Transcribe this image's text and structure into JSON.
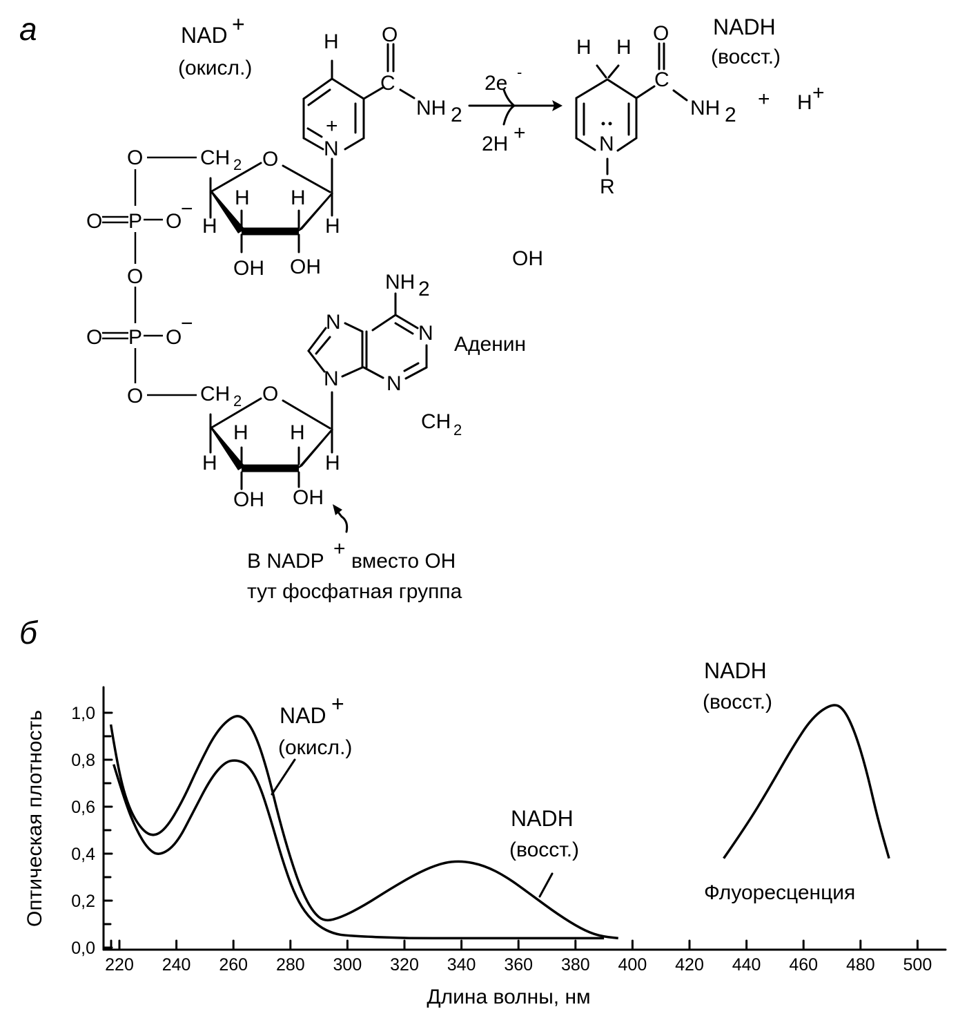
{
  "panel_a": {
    "panel_label": "а",
    "nad_label": "NAD",
    "nad_charge": "+",
    "nad_state": "(окисл.)",
    "nadh_label": "NADH",
    "nadh_state": "(восст.)",
    "atoms": {
      "H": "H",
      "O": "O",
      "C": "C",
      "N": "N",
      "NH2": "NH",
      "sub2": "2",
      "P": "P",
      "CH2": "CH",
      "OH": "OH",
      "R": "R",
      "plus": "+",
      "minus": "−",
      "Hplus": "H"
    },
    "reaction": {
      "electrons": "2e",
      "electrons_charge": "-",
      "protons": "2H",
      "protons_charge": "+",
      "plus_sign": "+"
    },
    "stray_oh": "OH",
    "stray_ch2": "CH",
    "adenine_label": "Аденин",
    "note_line1": "В NADP",
    "note_line1_charge": "+",
    "note_line1_rest": "вместо OH",
    "note_line2": "тут фосфатная группа"
  },
  "chart_data": {
    "panel_label": "б",
    "type": "line",
    "xlabel": "Длина волны, нм",
    "ylabel": "Оптическая плотность",
    "xlim": [
      215,
      510
    ],
    "ylim": [
      0,
      1.1
    ],
    "grid": false,
    "x_ticks": [
      "220",
      "240",
      "260",
      "280",
      "300",
      "320",
      "340",
      "360",
      "380",
      "400",
      "420",
      "440",
      "460",
      "480",
      "500"
    ],
    "x_tick_values": [
      220,
      240,
      260,
      280,
      300,
      320,
      340,
      360,
      380,
      400,
      420,
      440,
      460,
      480,
      500
    ],
    "y_ticks": [
      "0,0",
      "0,2",
      "0,4",
      "0,6",
      "0,8",
      "1,0"
    ],
    "y_tick_values": [
      0,
      0.2,
      0.4,
      0.6,
      0.8,
      1.0
    ],
    "y_minor_tick_values": [
      0.1,
      0.3,
      0.5,
      0.7,
      0.9
    ],
    "annotations": {
      "nad": "NAD",
      "nad_charge": "+",
      "nad_state": "(окисл.)",
      "nadh_abs": "NADH",
      "nadh_abs_state": "(восст.)",
      "nadh_fl": "NADH",
      "nadh_fl_state": "(восст.)",
      "fluorescence": "Флуоресценция"
    },
    "series": [
      {
        "name": "NAD+ (окисл.)",
        "points": [
          [
            218,
            0.78
          ],
          [
            222,
            0.62
          ],
          [
            226,
            0.5
          ],
          [
            230,
            0.42
          ],
          [
            234,
            0.39
          ],
          [
            240,
            0.44
          ],
          [
            246,
            0.58
          ],
          [
            252,
            0.72
          ],
          [
            257,
            0.79
          ],
          [
            261,
            0.8
          ],
          [
            265,
            0.78
          ],
          [
            269,
            0.7
          ],
          [
            273,
            0.55
          ],
          [
            277,
            0.38
          ],
          [
            281,
            0.24
          ],
          [
            285,
            0.15
          ],
          [
            290,
            0.09
          ],
          [
            295,
            0.06
          ],
          [
            300,
            0.05
          ],
          [
            320,
            0.04
          ],
          [
            340,
            0.04
          ],
          [
            360,
            0.04
          ],
          [
            390,
            0.04
          ]
        ]
      },
      {
        "name": "NADH (восст.)",
        "points": [
          [
            217,
            0.95
          ],
          [
            219,
            0.8
          ],
          [
            222,
            0.64
          ],
          [
            226,
            0.53
          ],
          [
            231,
            0.47
          ],
          [
            236,
            0.5
          ],
          [
            242,
            0.62
          ],
          [
            248,
            0.78
          ],
          [
            254,
            0.92
          ],
          [
            260,
            0.99
          ],
          [
            264,
            0.98
          ],
          [
            268,
            0.9
          ],
          [
            272,
            0.75
          ],
          [
            276,
            0.55
          ],
          [
            280,
            0.38
          ],
          [
            284,
            0.24
          ],
          [
            288,
            0.15
          ],
          [
            292,
            0.11
          ],
          [
            298,
            0.13
          ],
          [
            306,
            0.18
          ],
          [
            315,
            0.25
          ],
          [
            325,
            0.32
          ],
          [
            333,
            0.36
          ],
          [
            340,
            0.37
          ],
          [
            348,
            0.35
          ],
          [
            356,
            0.3
          ],
          [
            365,
            0.22
          ],
          [
            374,
            0.14
          ],
          [
            382,
            0.08
          ],
          [
            388,
            0.05
          ],
          [
            395,
            0.04
          ]
        ]
      },
      {
        "name": "Флуоресценция",
        "points": [
          [
            432,
            0.38
          ],
          [
            440,
            0.52
          ],
          [
            448,
            0.68
          ],
          [
            456,
            0.85
          ],
          [
            463,
            0.98
          ],
          [
            470,
            1.04
          ],
          [
            474,
            1.02
          ],
          [
            478,
            0.92
          ],
          [
            482,
            0.76
          ],
          [
            486,
            0.55
          ],
          [
            490,
            0.38
          ]
        ]
      }
    ]
  }
}
